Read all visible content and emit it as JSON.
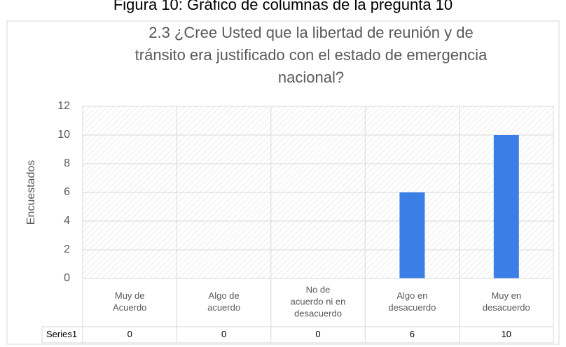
{
  "caption": "Figura 10: Gráfico de columnas de la pregunta 10",
  "chart_data": {
    "type": "bar",
    "title": [
      "2.3 ¿Cree Usted que la libertad de reunión y de",
      "tránsito era justificado con el estado de emergencia",
      "nacional?"
    ],
    "y_label": "Encuestados",
    "categories": [
      [
        "Muy de",
        "Acuerdo"
      ],
      [
        "Algo de",
        "acuerdo"
      ],
      [
        "No de",
        "acuerdo ni en",
        "desacuerdo"
      ],
      [
        "Algo en",
        "desacuerdo"
      ],
      [
        "Muy en",
        "desacuerdo"
      ]
    ],
    "series": [
      {
        "name": "Series1",
        "color": "#3b7ee6",
        "values": [
          0,
          0,
          0,
          6,
          10
        ]
      }
    ],
    "ylim": [
      0,
      12
    ],
    "yticks": [
      0,
      2,
      4,
      6,
      8,
      10,
      12
    ],
    "grid": true
  }
}
